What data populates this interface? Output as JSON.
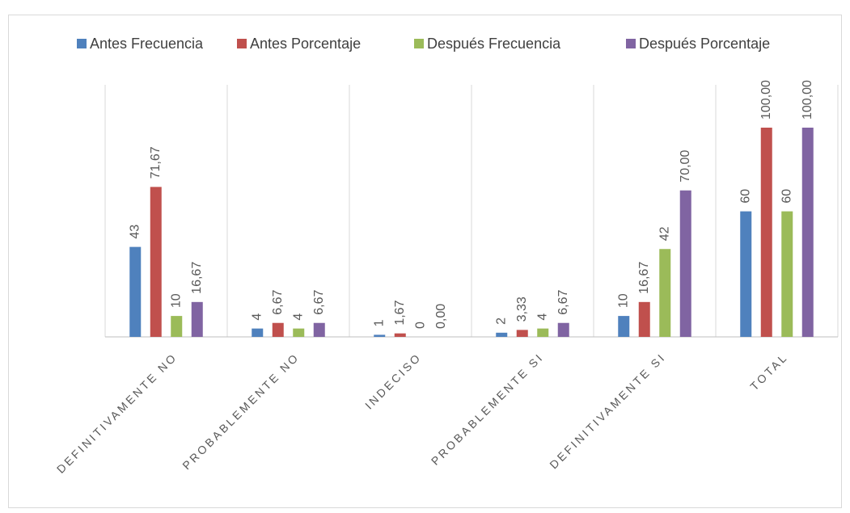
{
  "chart_data": {
    "type": "bar",
    "categories": [
      "DEFINITIVAMENTE NO",
      "PROBABLEMENTE NO",
      "INDECISO",
      "PROBABLEMENTE SI",
      "DEFINITIVAMENTE SI",
      "TOTAL"
    ],
    "series": [
      {
        "name": "Antes Frecuencia",
        "color": "#4f81bd",
        "values": [
          43,
          4,
          1,
          2,
          10,
          60
        ]
      },
      {
        "name": "Antes Porcentaje",
        "color": "#c0504d",
        "values": [
          71.67,
          6.67,
          1.67,
          3.33,
          16.67,
          100
        ],
        "value_labels": [
          "71,67",
          "6,67",
          "1,67",
          "3,33",
          "16,67",
          "100,00"
        ]
      },
      {
        "name": "Después Frecuencia",
        "color": "#9bbb59",
        "values": [
          10,
          4,
          0,
          4,
          42,
          60
        ]
      },
      {
        "name": "Después Porcentaje",
        "color": "#8064a2",
        "values": [
          16.67,
          6.67,
          0,
          6.67,
          70,
          100
        ],
        "value_labels": [
          "16,67",
          "6,67",
          "0,00",
          "6,67",
          "70,00",
          "100,00"
        ]
      }
    ],
    "legend": "top",
    "grid": true
  }
}
